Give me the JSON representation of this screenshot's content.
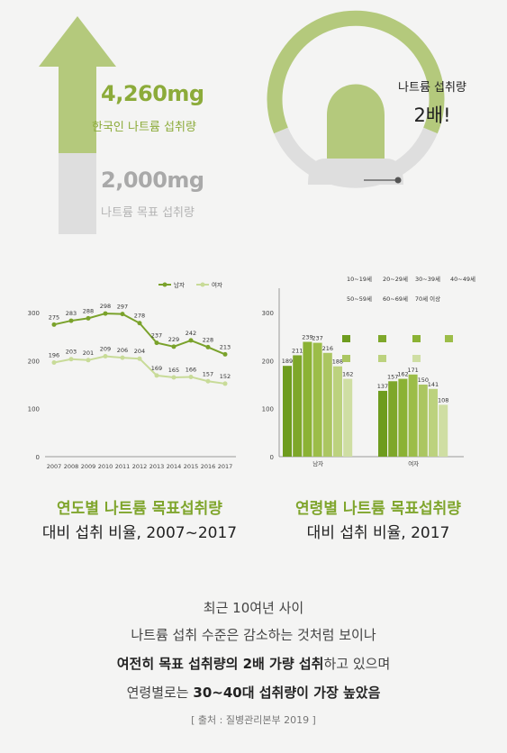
{
  "infographic": {
    "intake_value": "4,260mg",
    "intake_label": "한국인 나트륨 섭취량",
    "target_value": "2,000mg",
    "target_label": "나트륨 목표 섭취량",
    "gauge_title": "나트륨 섭취량",
    "gauge_value": "2배!",
    "colors": {
      "green": "#b4c97c",
      "green_text": "#8cab3a",
      "gray": "#dedede"
    }
  },
  "chart_data": [
    {
      "type": "line",
      "title_line1": "연도별 나트륨 목표섭취량",
      "title_line2": "대비 섭취 비율, 2007~2017",
      "x": [
        "2007",
        "2008",
        "2009",
        "2010",
        "2011",
        "2012",
        "2013",
        "2014",
        "2015",
        "2016",
        "2017"
      ],
      "series": [
        {
          "name": "남자",
          "color": "#7aa22b",
          "values": [
            275,
            283,
            288,
            298,
            297,
            278,
            237,
            229,
            242,
            228,
            213
          ]
        },
        {
          "name": "여자",
          "color": "#c8db98",
          "values": [
            196,
            203,
            201,
            209,
            206,
            204,
            169,
            165,
            166,
            157,
            152
          ]
        }
      ],
      "ylim": [
        0,
        300
      ],
      "yticks": [
        "0",
        "100",
        "200",
        "300"
      ],
      "legend": "top-right",
      "grid": false
    },
    {
      "type": "bar",
      "title_line1": "연령별 나트륨 목표섭취량",
      "title_line2": "대비 섭취 비율, 2017",
      "categories": [
        "남자",
        "여자"
      ],
      "series": [
        {
          "name": "10~19세",
          "color": "#6e9c1e",
          "values": [
            189,
            137
          ]
        },
        {
          "name": "20~29세",
          "color": "#7ea72a",
          "values": [
            211,
            157
          ]
        },
        {
          "name": "30~39세",
          "color": "#8bb234",
          "values": [
            239,
            162
          ]
        },
        {
          "name": "40~49세",
          "color": "#9cbd48",
          "values": [
            237,
            171
          ]
        },
        {
          "name": "50~59세",
          "color": "#abc661",
          "values": [
            216,
            150
          ]
        },
        {
          "name": "60~69세",
          "color": "#bcd27e",
          "values": [
            188,
            141
          ]
        },
        {
          "name": "70세 이상",
          "color": "#cfdea3",
          "values": [
            162,
            108
          ]
        }
      ],
      "ylim": [
        0,
        300
      ],
      "yticks": [
        "0",
        "100",
        "200",
        "300"
      ],
      "legend": "top",
      "grid": false
    }
  ],
  "summary": {
    "line1": "최근 10여년 사이",
    "line2": "나트륨 섭취 수준은 감소하는 것처럼 보이나",
    "line3_bold": "여전히 목표 섭취량의 2배 가량 섭취",
    "line3_rest": "하고 있으며",
    "line4_normal": "연령별로는 ",
    "line4_bold": "30~40대 섭취량이 가장 높았음",
    "source": "[ 출처 : 질병관리본부 2019 ]"
  }
}
